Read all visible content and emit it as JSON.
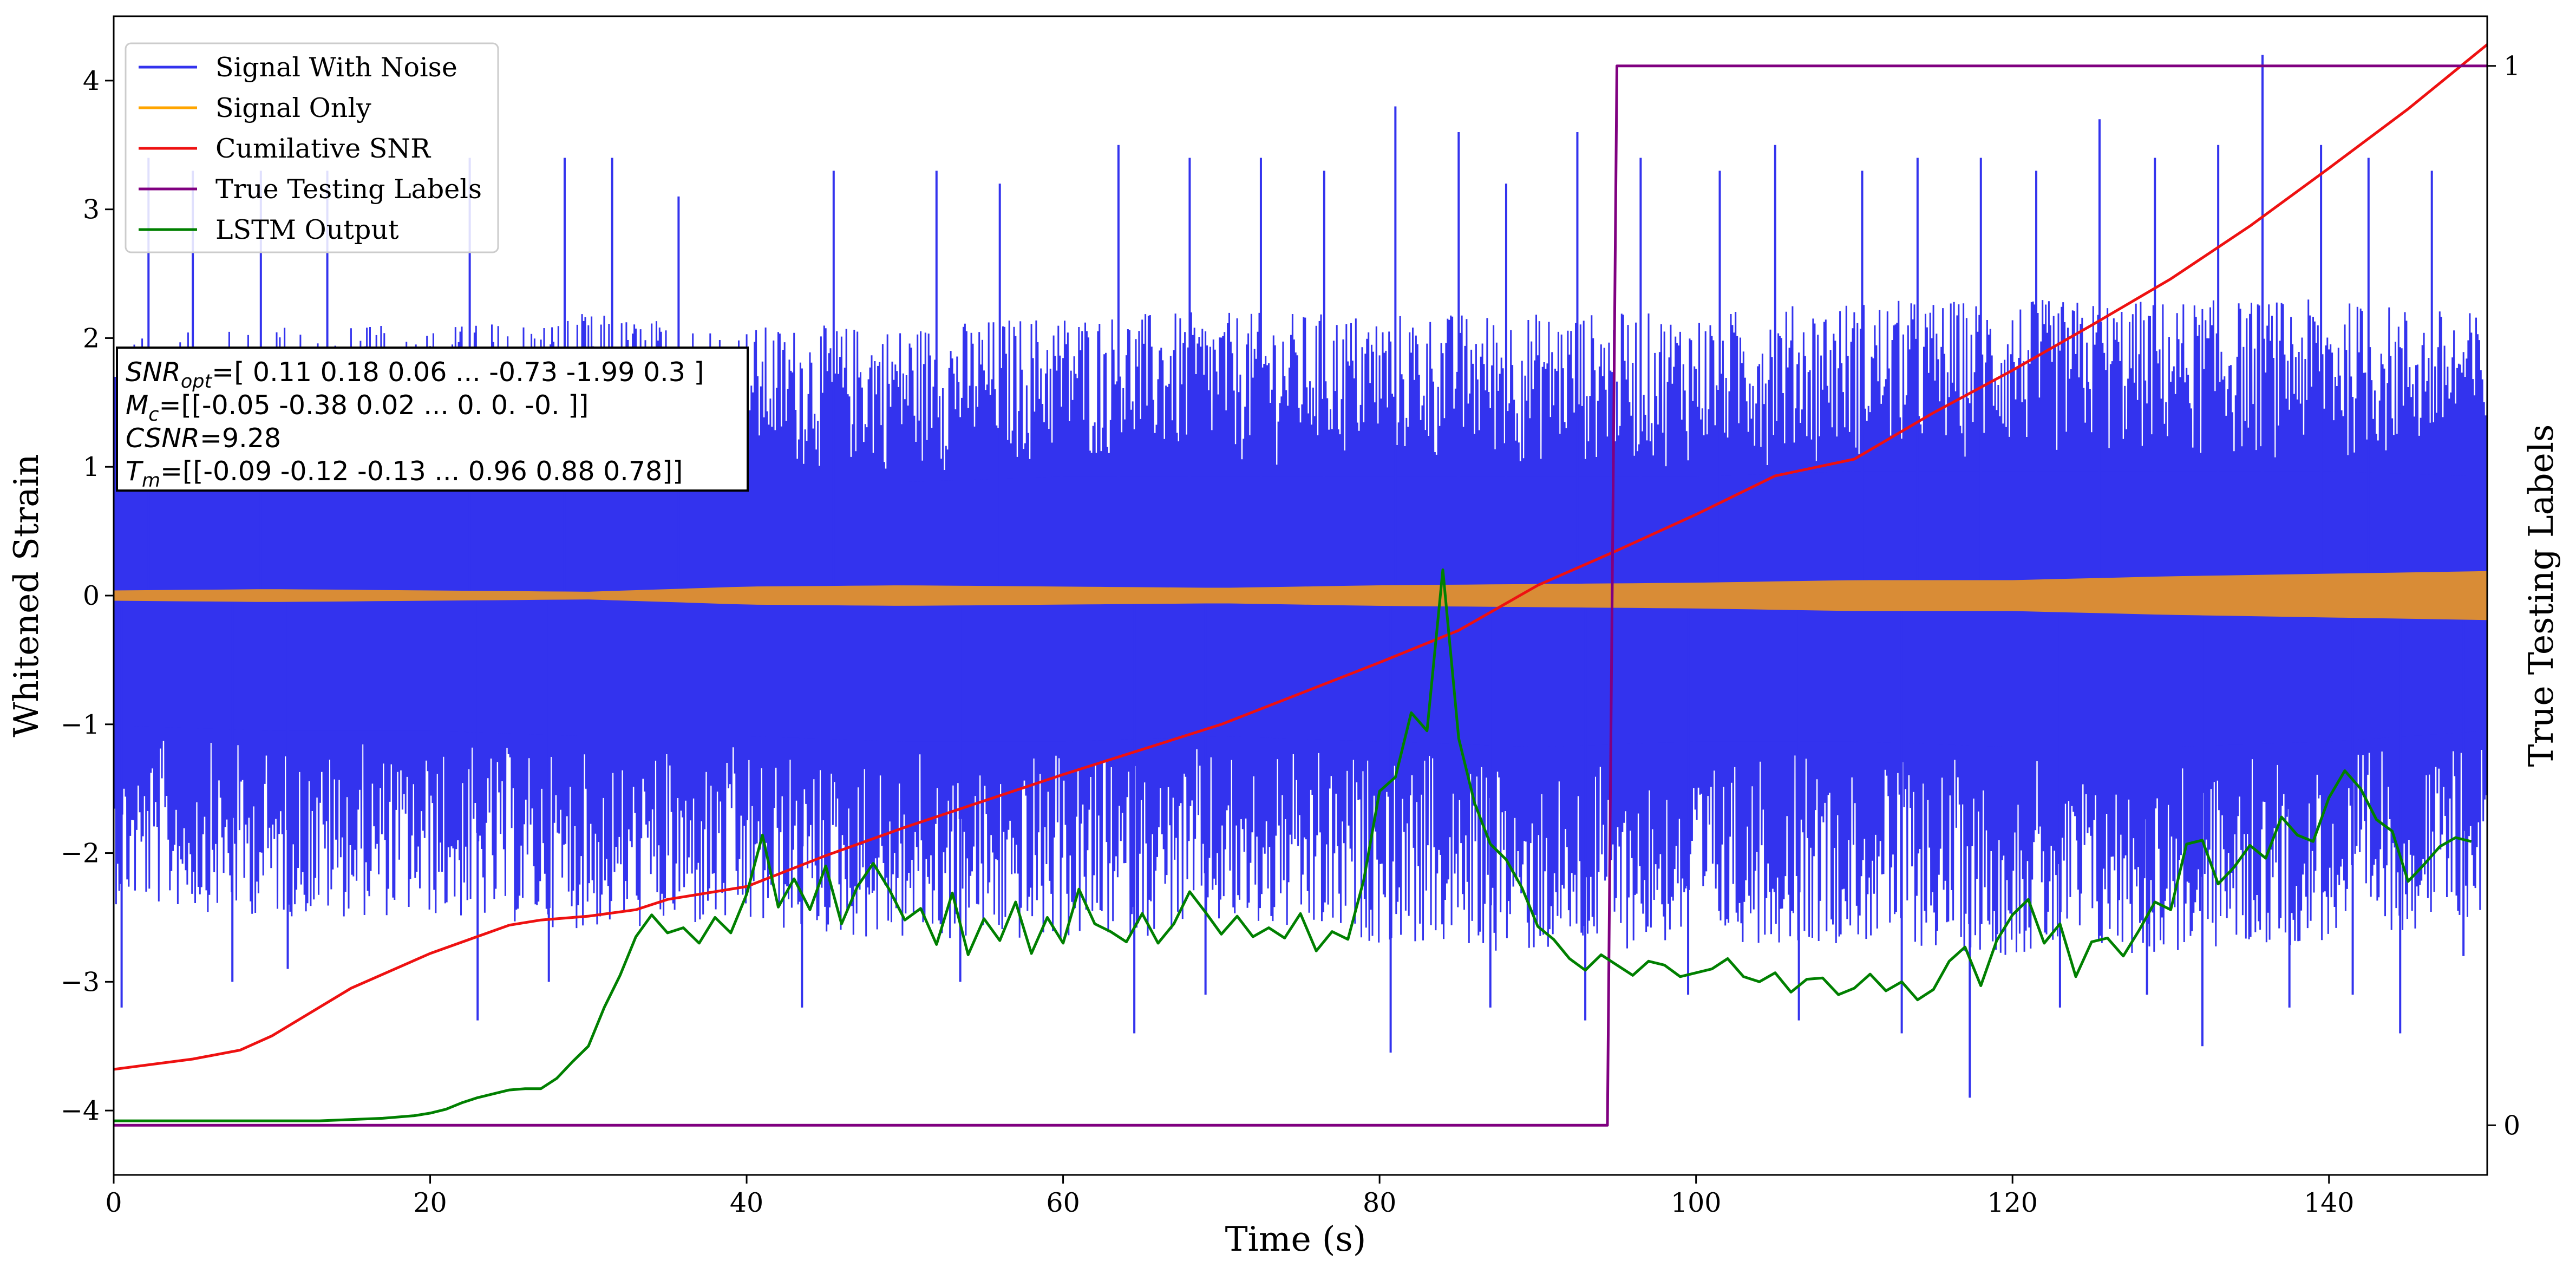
{
  "chart_data": {
    "type": "line",
    "xlabel": "Time (s)",
    "ylabel": "Whitened Strain",
    "ylabel_right": "True Testing Labels",
    "xlim": [
      0,
      150
    ],
    "ylim": [
      -4.5,
      4.5
    ],
    "ylim_right": [
      -0.046875,
      1.046875
    ],
    "x_ticks": [
      "0",
      "20",
      "40",
      "60",
      "80",
      "100",
      "120",
      "140"
    ],
    "y_ticks": [
      "−4",
      "−3",
      "−2",
      "−1",
      "0",
      "1",
      "2",
      "3",
      "4"
    ],
    "y_right_ticks": [
      "0",
      "1"
    ],
    "legend_position": "upper-left",
    "grid": false,
    "annotation": {
      "lines": [
        {
          "sym": "SNR",
          "sub": "opt",
          "text": "=[ 0.11  0.18  0.06 ... -0.73 -1.99  0.3 ]"
        },
        {
          "sym": "M",
          "sub": "c",
          "text": "=[[-0.05 -0.38  0.02 ...  0.    0.   -0.  ]]"
        },
        {
          "sym": "CSNR",
          "sub": "",
          "text": "=9.28"
        },
        {
          "sym": "T",
          "sub": "m",
          "text": "=[[-0.09 -0.12 -0.13 ...  0.96  0.88  0.78]]"
        }
      ]
    },
    "series": [
      {
        "name": "Signal With Noise",
        "color": "#3333ee",
        "axis": "left",
        "style": "dense-noise",
        "envelope": {
          "t": [
            0,
            10,
            20,
            30,
            40,
            50,
            60,
            70,
            80,
            90,
            100,
            110,
            120,
            130,
            140,
            150
          ],
          "upper": [
            2.0,
            2.1,
            2.1,
            2.2,
            2.1,
            2.1,
            2.2,
            2.2,
            2.2,
            2.2,
            2.2,
            2.3,
            2.3,
            2.3,
            2.3,
            2.2
          ],
          "lower": [
            -2.4,
            -2.5,
            -2.5,
            -2.6,
            -2.6,
            -2.7,
            -2.7,
            -2.6,
            -2.7,
            -2.8,
            -2.7,
            -2.7,
            -2.8,
            -2.8,
            -2.7,
            -2.5
          ]
        },
        "spikes": [
          {
            "x": 2.2,
            "y": 3.4
          },
          {
            "x": 5.0,
            "y": 3.3
          },
          {
            "x": 9.3,
            "y": 3.3
          },
          {
            "x": 13.5,
            "y": 3.3
          },
          {
            "x": 22.5,
            "y": 3.4
          },
          {
            "x": 28.5,
            "y": 3.4
          },
          {
            "x": 31.5,
            "y": 3.4
          },
          {
            "x": 35.7,
            "y": 3.1
          },
          {
            "x": 45.5,
            "y": 3.3
          },
          {
            "x": 52.0,
            "y": 3.3
          },
          {
            "x": 56.0,
            "y": 3.2
          },
          {
            "x": 63.5,
            "y": 3.5
          },
          {
            "x": 68.0,
            "y": 3.4
          },
          {
            "x": 72.5,
            "y": 3.4
          },
          {
            "x": 76.5,
            "y": 3.3
          },
          {
            "x": 81.0,
            "y": 3.8
          },
          {
            "x": 85.0,
            "y": 3.6
          },
          {
            "x": 88.0,
            "y": 3.2
          },
          {
            "x": 92.5,
            "y": 3.6
          },
          {
            "x": 96.5,
            "y": 3.4
          },
          {
            "x": 101.5,
            "y": 3.3
          },
          {
            "x": 105.0,
            "y": 3.5
          },
          {
            "x": 110.5,
            "y": 3.3
          },
          {
            "x": 114.0,
            "y": 3.4
          },
          {
            "x": 118.0,
            "y": 3.4
          },
          {
            "x": 121.5,
            "y": 3.3
          },
          {
            "x": 125.5,
            "y": 3.7
          },
          {
            "x": 129.0,
            "y": 3.4
          },
          {
            "x": 133.0,
            "y": 3.5
          },
          {
            "x": 135.8,
            "y": 4.2
          },
          {
            "x": 139.5,
            "y": 3.5
          },
          {
            "x": 142.5,
            "y": 3.4
          },
          {
            "x": 146.5,
            "y": 3.3
          },
          {
            "x": 0.5,
            "y": -3.2
          },
          {
            "x": 7.5,
            "y": -3.0
          },
          {
            "x": 11.0,
            "y": -2.9
          },
          {
            "x": 23.0,
            "y": -3.3
          },
          {
            "x": 27.5,
            "y": -3.0
          },
          {
            "x": 43.5,
            "y": -3.2
          },
          {
            "x": 53.5,
            "y": -3.0
          },
          {
            "x": 64.5,
            "y": -3.4
          },
          {
            "x": 69.0,
            "y": -3.1
          },
          {
            "x": 80.7,
            "y": -3.55
          },
          {
            "x": 87.0,
            "y": -3.2
          },
          {
            "x": 93.0,
            "y": -3.3
          },
          {
            "x": 99.5,
            "y": -3.1
          },
          {
            "x": 106.5,
            "y": -3.3
          },
          {
            "x": 113.0,
            "y": -3.4
          },
          {
            "x": 117.3,
            "y": -3.9
          },
          {
            "x": 123.0,
            "y": -3.2
          },
          {
            "x": 128.5,
            "y": -3.1
          },
          {
            "x": 132.0,
            "y": -3.5
          },
          {
            "x": 137.5,
            "y": -3.2
          },
          {
            "x": 141.5,
            "y": -3.1
          },
          {
            "x": 144.5,
            "y": -3.4
          },
          {
            "x": 148.5,
            "y": -2.8
          }
        ]
      },
      {
        "name": "Signal Only",
        "color": "#ffa500",
        "axis": "left",
        "style": "amplitude-band",
        "amplitude": {
          "t": [
            0,
            10,
            20,
            30,
            35,
            40,
            50,
            60,
            70,
            80,
            90,
            100,
            110,
            120,
            130,
            140,
            150
          ],
          "a": [
            0.04,
            0.05,
            0.04,
            0.03,
            0.05,
            0.07,
            0.08,
            0.07,
            0.06,
            0.08,
            0.09,
            0.1,
            0.12,
            0.12,
            0.15,
            0.17,
            0.19
          ]
        }
      },
      {
        "name": "Cumilative SNR",
        "color": "#ee1111",
        "axis": "left",
        "x": [
          0,
          5,
          8,
          10,
          15,
          20,
          25,
          27,
          30,
          33,
          35,
          40,
          45,
          50,
          60,
          70,
          80,
          85,
          90,
          95,
          100,
          105,
          110,
          115,
          120,
          125,
          130,
          135,
          140,
          145,
          150
        ],
        "y": [
          -3.68,
          -3.6,
          -3.53,
          -3.42,
          -3.05,
          -2.78,
          -2.56,
          -2.52,
          -2.49,
          -2.44,
          -2.36,
          -2.26,
          -2.02,
          -1.8,
          -1.39,
          -1.0,
          -0.52,
          -0.27,
          0.08,
          0.35,
          0.63,
          0.93,
          1.06,
          1.42,
          1.75,
          2.1,
          2.46,
          2.87,
          3.32,
          3.78,
          4.28
        ]
      },
      {
        "name": "True Testing Labels",
        "color": "#800080",
        "axis": "right",
        "x": [
          0,
          94.4,
          95.0,
          150
        ],
        "y": [
          0,
          0,
          1,
          1
        ]
      },
      {
        "name": "LSTM Output",
        "color": "#008000",
        "axis": "left",
        "x": [
          0,
          13,
          17,
          19,
          20,
          21,
          22,
          23,
          24,
          25,
          26,
          27,
          28,
          29,
          30,
          31,
          32,
          33,
          34,
          35,
          36,
          37,
          38,
          39,
          40,
          41,
          42,
          43,
          44,
          45,
          46,
          47,
          48,
          49,
          50,
          51,
          52,
          53,
          54,
          55,
          56,
          57,
          58,
          59,
          60,
          61,
          62,
          63,
          64,
          65,
          66,
          67,
          68,
          69,
          70,
          71,
          72,
          73,
          74,
          75,
          76,
          77,
          78,
          79,
          80,
          81,
          82,
          83,
          84,
          85,
          86,
          87,
          88,
          89,
          90,
          91,
          92,
          93,
          94,
          95,
          96,
          97,
          98,
          99,
          100,
          101,
          102,
          103,
          104,
          105,
          106,
          107,
          108,
          109,
          110,
          111,
          112,
          113,
          114,
          115,
          116,
          117,
          118,
          119,
          120,
          121,
          122,
          123,
          124,
          125,
          126,
          127,
          128,
          129,
          130,
          131,
          132,
          133,
          134,
          135,
          136,
          137,
          138,
          139,
          140,
          141,
          142,
          143,
          144,
          145,
          146,
          147,
          148,
          149
        ],
        "y": [
          -4.08,
          -4.08,
          -4.06,
          -4.04,
          -4.02,
          -3.99,
          -3.94,
          -3.9,
          -3.87,
          -3.84,
          -3.83,
          -3.83,
          -3.75,
          -3.62,
          -3.5,
          -3.2,
          -2.95,
          -2.65,
          -2.48,
          -2.62,
          -2.58,
          -2.7,
          -2.5,
          -2.62,
          -2.32,
          -1.86,
          -2.42,
          -2.2,
          -2.44,
          -2.1,
          -2.55,
          -2.26,
          -2.08,
          -2.28,
          -2.52,
          -2.43,
          -2.71,
          -2.31,
          -2.79,
          -2.51,
          -2.68,
          -2.38,
          -2.78,
          -2.5,
          -2.7,
          -2.28,
          -2.55,
          -2.61,
          -2.69,
          -2.47,
          -2.7,
          -2.55,
          -2.3,
          -2.46,
          -2.63,
          -2.49,
          -2.65,
          -2.58,
          -2.66,
          -2.47,
          -2.76,
          -2.61,
          -2.67,
          -2.21,
          -1.52,
          -1.41,
          -0.91,
          -1.05,
          0.2,
          -1.11,
          -1.61,
          -1.93,
          -2.05,
          -2.27,
          -2.57,
          -2.67,
          -2.82,
          -2.91,
          -2.79,
          -2.87,
          -2.95,
          -2.84,
          -2.87,
          -2.96,
          -2.93,
          -2.9,
          -2.82,
          -2.96,
          -3.0,
          -2.93,
          -3.08,
          -2.98,
          -2.97,
          -3.1,
          -3.05,
          -2.94,
          -3.07,
          -3.0,
          -3.14,
          -3.06,
          -2.84,
          -2.73,
          -3.03,
          -2.68,
          -2.48,
          -2.36,
          -2.7,
          -2.55,
          -2.96,
          -2.69,
          -2.66,
          -2.8,
          -2.6,
          -2.38,
          -2.44,
          -1.93,
          -1.9,
          -2.24,
          -2.11,
          -1.94,
          -2.04,
          -1.72,
          -1.86,
          -1.91,
          -1.57,
          -1.36,
          -1.5,
          -1.74,
          -1.83,
          -2.22,
          -2.09,
          -1.95,
          -1.88,
          -1.91
        ]
      }
    ]
  }
}
